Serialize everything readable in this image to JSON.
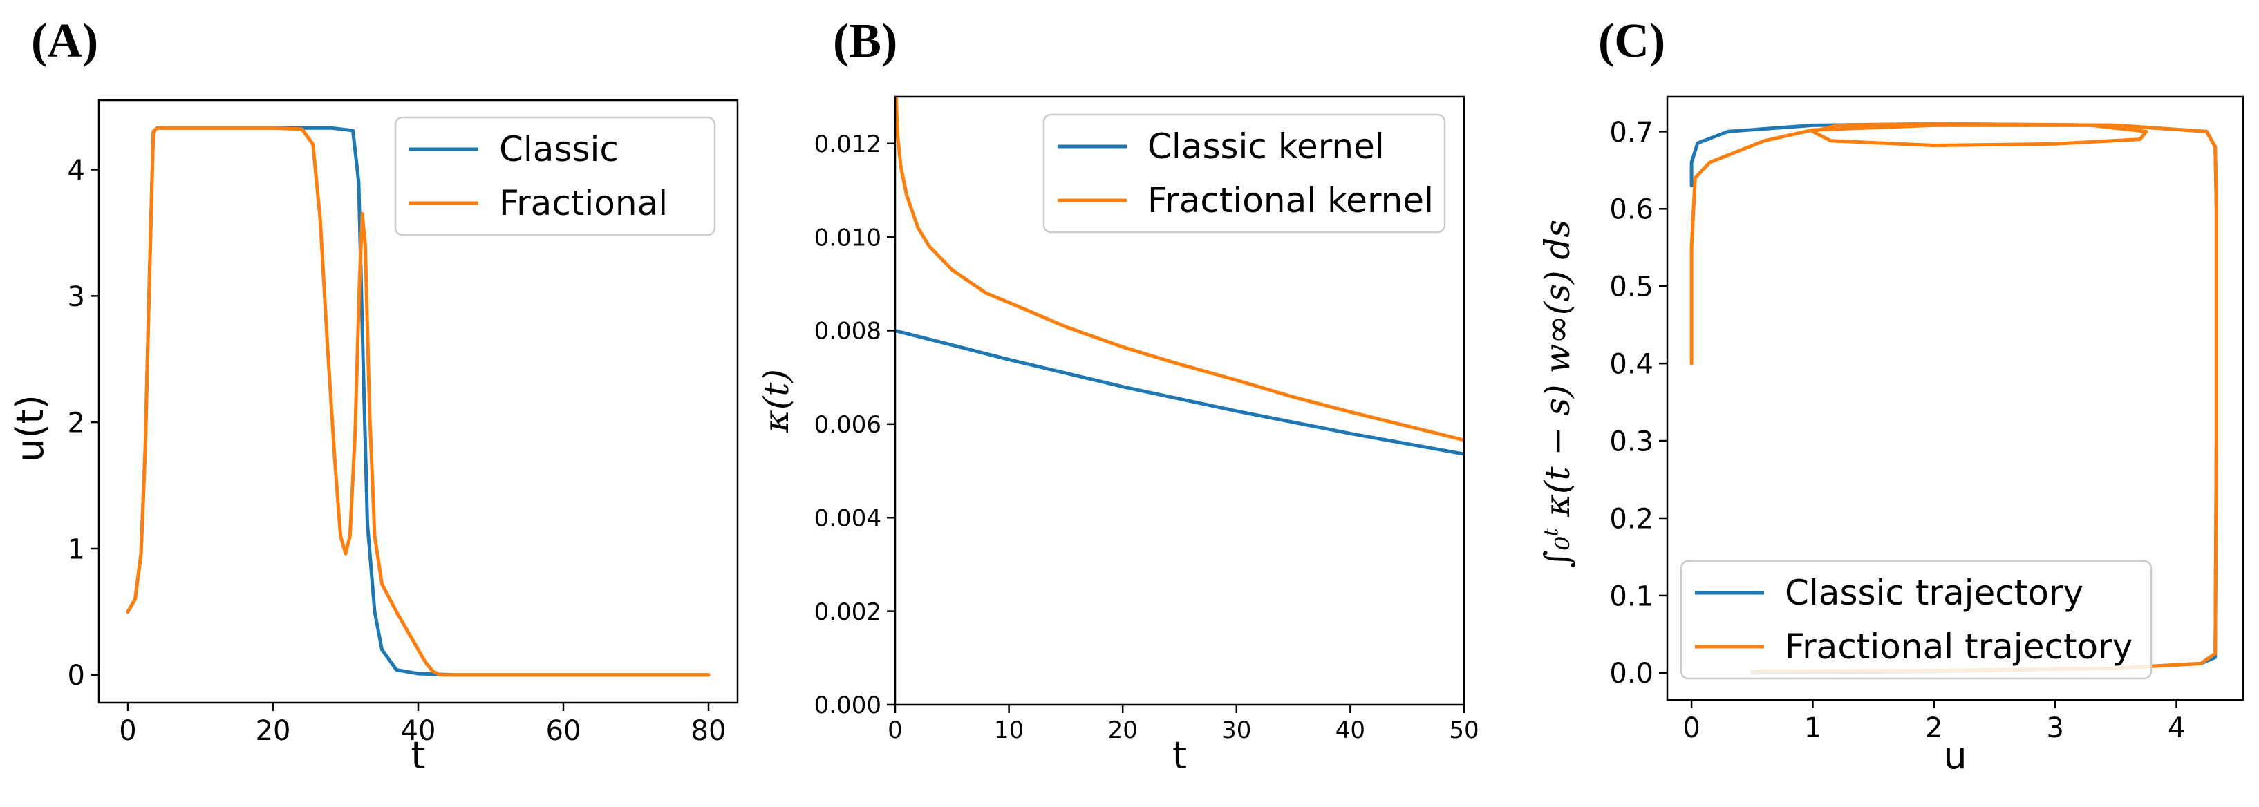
{
  "chart_data": [
    {
      "panel_label": "(A)",
      "type": "line",
      "xlabel": "t",
      "ylabel": "u(t)",
      "xlim": [
        -4,
        84
      ],
      "ylim": [
        -0.22,
        4.55
      ],
      "xticks": [
        "0",
        "20",
        "40",
        "60",
        "80"
      ],
      "xtick_values": [
        0,
        20,
        40,
        60,
        80
      ],
      "yticks": [
        "0",
        "1",
        "2",
        "3",
        "4"
      ],
      "ytick_values": [
        0,
        1,
        2,
        3,
        4
      ],
      "legend_position": "upper-right",
      "series": [
        {
          "name": "Classic",
          "color": "#1f77b4",
          "points": [
            [
              0,
              0.5
            ],
            [
              1,
              0.6
            ],
            [
              1.8,
              0.95
            ],
            [
              2.4,
              1.8
            ],
            [
              3,
              3.2
            ],
            [
              3.5,
              4.3
            ],
            [
              4,
              4.33
            ],
            [
              10,
              4.33
            ],
            [
              20,
              4.33
            ],
            [
              28,
              4.33
            ],
            [
              31,
              4.31
            ],
            [
              31.8,
              3.9
            ],
            [
              32.4,
              2.5
            ],
            [
              33,
              1.2
            ],
            [
              34,
              0.5
            ],
            [
              35,
              0.2
            ],
            [
              37,
              0.04
            ],
            [
              40,
              0.01
            ],
            [
              45,
              0
            ],
            [
              60,
              0
            ],
            [
              80,
              0
            ]
          ]
        },
        {
          "name": "Fractional",
          "color": "#ff7f0e",
          "points": [
            [
              0,
              0.5
            ],
            [
              1,
              0.6
            ],
            [
              1.8,
              0.95
            ],
            [
              2.4,
              1.8
            ],
            [
              3,
              3.2
            ],
            [
              3.5,
              4.3
            ],
            [
              4,
              4.33
            ],
            [
              10,
              4.33
            ],
            [
              20,
              4.33
            ],
            [
              24,
              4.32
            ],
            [
              25.5,
              4.2
            ],
            [
              26.5,
              3.6
            ],
            [
              27.5,
              2.6
            ],
            [
              28.5,
              1.7
            ],
            [
              29.3,
              1.1
            ],
            [
              30,
              0.96
            ],
            [
              30.6,
              1.1
            ],
            [
              31.3,
              1.9
            ],
            [
              31.9,
              3.1
            ],
            [
              32.3,
              3.65
            ],
            [
              32.7,
              3.4
            ],
            [
              33.3,
              2.1
            ],
            [
              34,
              1.1
            ],
            [
              35,
              0.72
            ],
            [
              37,
              0.5
            ],
            [
              39,
              0.3
            ],
            [
              41,
              0.1
            ],
            [
              42,
              0.03
            ],
            [
              43,
              0
            ],
            [
              60,
              0
            ],
            [
              80,
              0
            ]
          ]
        }
      ]
    },
    {
      "panel_label": "(B)",
      "type": "line",
      "xlabel": "t",
      "ylabel": "κ(t)",
      "xlim": [
        0,
        50
      ],
      "ylim": [
        0,
        0.013
      ],
      "xticks": [
        "0",
        "10",
        "20",
        "30",
        "40",
        "50"
      ],
      "xtick_values": [
        0,
        10,
        20,
        30,
        40,
        50
      ],
      "yticks": [
        "0.000",
        "0.002",
        "0.004",
        "0.006",
        "0.008",
        "0.010",
        "0.012"
      ],
      "ytick_values": [
        0,
        0.002,
        0.004,
        0.006,
        0.008,
        0.01,
        0.012
      ],
      "legend_position": "upper-right",
      "series": [
        {
          "name": "Classic kernel",
          "color": "#1f77b4",
          "points": [
            [
              0,
              0.008
            ],
            [
              10,
              0.00738
            ],
            [
              20,
              0.0068
            ],
            [
              30,
              0.00628
            ],
            [
              40,
              0.0058
            ],
            [
              50,
              0.00536
            ]
          ]
        },
        {
          "name": "Fractional kernel",
          "color": "#ff7f0e",
          "points": [
            [
              0.05,
              0.0132
            ],
            [
              0.2,
              0.0122
            ],
            [
              0.5,
              0.0115
            ],
            [
              1,
              0.0109
            ],
            [
              2,
              0.0102
            ],
            [
              3,
              0.0098
            ],
            [
              5,
              0.0093
            ],
            [
              8,
              0.0088
            ],
            [
              10,
              0.0086
            ],
            [
              15,
              0.00808
            ],
            [
              20,
              0.00765
            ],
            [
              25,
              0.00728
            ],
            [
              30,
              0.00694
            ],
            [
              35,
              0.00658
            ],
            [
              40,
              0.00626
            ],
            [
              45,
              0.00596
            ],
            [
              50,
              0.00566
            ]
          ]
        }
      ]
    },
    {
      "panel_label": "(C)",
      "type": "line",
      "xlabel": "u",
      "ylabel": "∫₀ᵗ κ(t − s) w∞(s) ds",
      "xlim": [
        -0.2,
        4.55
      ],
      "ylim": [
        -0.035,
        0.745
      ],
      "xticks": [
        "0",
        "1",
        "2",
        "3",
        "4"
      ],
      "xtick_values": [
        0,
        1,
        2,
        3,
        4
      ],
      "yticks": [
        "0.0",
        "0.1",
        "0.2",
        "0.3",
        "0.4",
        "0.5",
        "0.6",
        "0.7"
      ],
      "ytick_values": [
        0,
        0.1,
        0.2,
        0.3,
        0.4,
        0.5,
        0.6,
        0.7
      ],
      "legend_position": "lower-left",
      "series": [
        {
          "name": "Classic trajectory",
          "color": "#1f77b4",
          "points": [
            [
              0.5,
              0.0
            ],
            [
              2,
              0.002
            ],
            [
              3.5,
              0.006
            ],
            [
              4.2,
              0.012
            ],
            [
              4.32,
              0.02
            ],
            [
              4.33,
              0.3
            ],
            [
              4.33,
              0.6
            ],
            [
              4.32,
              0.68
            ],
            [
              4.25,
              0.7
            ],
            [
              3.5,
              0.708
            ],
            [
              2,
              0.71
            ],
            [
              1,
              0.708
            ],
            [
              0.3,
              0.7
            ],
            [
              0.05,
              0.685
            ],
            [
              0.0,
              0.66
            ],
            [
              0.0,
              0.63
            ]
          ]
        },
        {
          "name": "Fractional trajectory",
          "color": "#ff7f0e",
          "points": [
            [
              0.5,
              0.002
            ],
            [
              2,
              0.003
            ],
            [
              3.5,
              0.006
            ],
            [
              4.2,
              0.012
            ],
            [
              4.32,
              0.025
            ],
            [
              4.33,
              0.3
            ],
            [
              4.33,
              0.6
            ],
            [
              4.32,
              0.68
            ],
            [
              4.25,
              0.7
            ],
            [
              3.5,
              0.708
            ],
            [
              2,
              0.71
            ],
            [
              1.2,
              0.708
            ],
            [
              1.0,
              0.7
            ],
            [
              1.15,
              0.688
            ],
            [
              2,
              0.682
            ],
            [
              3,
              0.684
            ],
            [
              3.7,
              0.69
            ],
            [
              3.75,
              0.7
            ],
            [
              3.3,
              0.708
            ],
            [
              2,
              0.708
            ],
            [
              1,
              0.702
            ],
            [
              0.6,
              0.688
            ],
            [
              0.15,
              0.66
            ],
            [
              0.03,
              0.64
            ],
            [
              0.0,
              0.55
            ],
            [
              0.0,
              0.4
            ]
          ]
        }
      ]
    }
  ]
}
